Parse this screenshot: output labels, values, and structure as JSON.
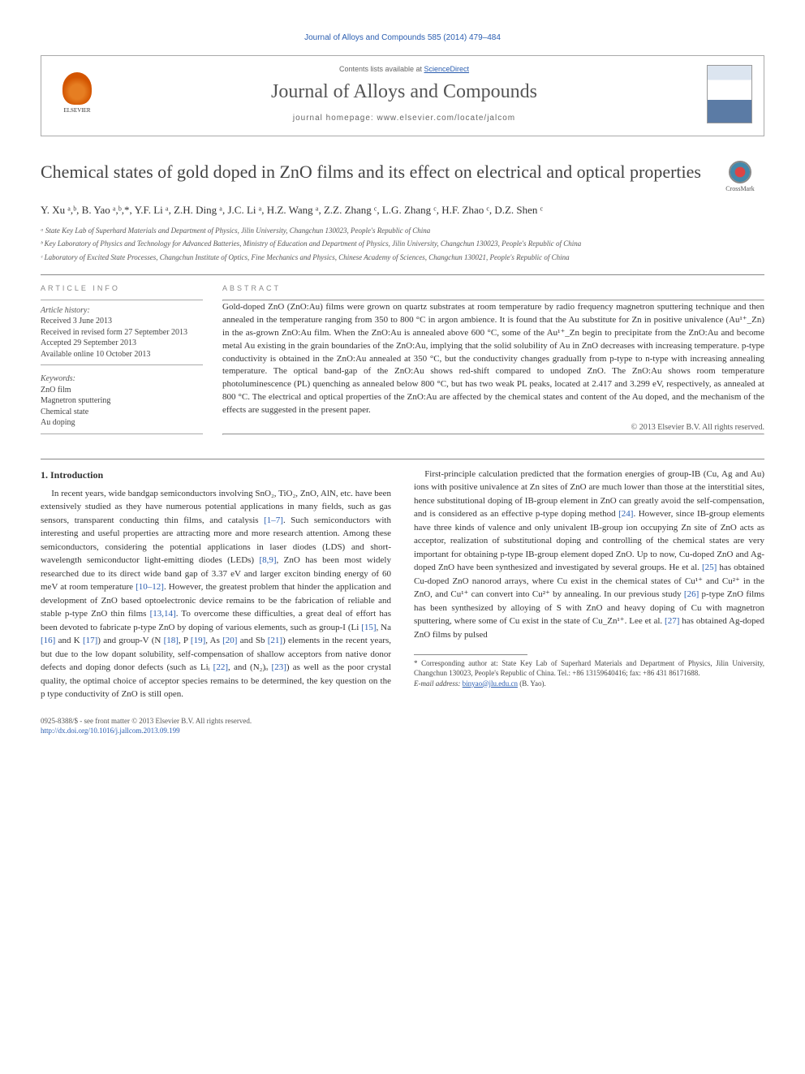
{
  "journal_ref": "Journal of Alloys and Compounds 585 (2014) 479–484",
  "header": {
    "contents_pre": "Contents lists available at ",
    "contents_link": "ScienceDirect",
    "journal_title": "Journal of Alloys and Compounds",
    "homepage": "journal homepage: www.elsevier.com/locate/jalcom",
    "publisher": "ELSEVIER"
  },
  "crossmark_label": "CrossMark",
  "title": "Chemical states of gold doped in ZnO films and its effect on electrical and optical properties",
  "authors": "Y. Xu ᵃ,ᵇ, B. Yao ᵃ,ᵇ,*, Y.F. Li ᵃ, Z.H. Ding ᵃ, J.C. Li ᵃ, H.Z. Wang ᵃ, Z.Z. Zhang ᶜ, L.G. Zhang ᶜ, H.F. Zhao ᶜ, D.Z. Shen ᶜ",
  "aff_a": "ᵃ State Key Lab of Superhard Materials and Department of Physics, Jilin University, Changchun 130023, People's Republic of China",
  "aff_b": "ᵇ Key Laboratory of Physics and Technology for Advanced Batteries, Ministry of Education and Department of Physics, Jilin University, Changchun 130023, People's Republic of China",
  "aff_c": "ᶜ Laboratory of Excited State Processes, Changchun Institute of Optics, Fine Mechanics and Physics, Chinese Academy of Sciences, Changchun 130021, People's Republic of China",
  "info_head": "ARTICLE INFO",
  "abstract_head": "ABSTRACT",
  "history_label": "Article history:",
  "history": {
    "received": "Received 3 June 2013",
    "revised": "Received in revised form 27 September 2013",
    "accepted": "Accepted 29 September 2013",
    "online": "Available online 10 October 2013"
  },
  "kw_label": "Keywords:",
  "keywords": {
    "k1": "ZnO film",
    "k2": "Magnetron sputtering",
    "k3": "Chemical state",
    "k4": "Au doping"
  },
  "abstract": "Gold-doped ZnO (ZnO:Au) films were grown on quartz substrates at room temperature by radio frequency magnetron sputtering technique and then annealed in the temperature ranging from 350 to 800 °C in argon ambience. It is found that the Au substitute for Zn in positive univalence (Au¹⁺_Zn) in the as-grown ZnO:Au film. When the ZnO:Au is annealed above 600 °C, some of the Au¹⁺_Zn begin to precipitate from the ZnO:Au and become metal Au existing in the grain boundaries of the ZnO:Au, implying that the solid solubility of Au in ZnO decreases with increasing temperature. p-type conductivity is obtained in the ZnO:Au annealed at 350 °C, but the conductivity changes gradually from p-type to n-type with increasing annealing temperature. The optical band-gap of the ZnO:Au shows red-shift compared to undoped ZnO. The ZnO:Au shows room temperature photoluminescence (PL) quenching as annealed below 800 °C, but has two weak PL peaks, located at 2.417 and 3.299 eV, respectively, as annealed at 800 °C. The electrical and optical properties of the ZnO:Au are affected by the chemical states and content of the Au doped, and the mechanism of the effects are suggested in the present paper.",
  "copyright": "© 2013 Elsevier B.V. All rights reserved.",
  "section_heading": "1. Introduction",
  "para1_a": "In recent years, wide bandgap semiconductors involving SnO₂, TiO₂, ZnO, AlN, etc. have been extensively studied as they have numerous potential applications in many fields, such as gas sensors, transparent conducting thin films, and catalysis ",
  "ref_1_7": "[1–7]",
  "para1_b": ". Such semiconductors with interesting and useful properties are attracting more and more research attention. Among these semiconductors, considering the potential applications in laser diodes (LDS) and short-wavelength semiconductor light-emitting diodes (LEDs) ",
  "ref_8_9": "[8,9]",
  "para1_c": ", ZnO has been most widely researched due to its direct wide band gap of 3.37 eV and larger exciton binding energy of 60 meV at room temperature ",
  "ref_10_12": "[10–12]",
  "para1_d": ". However, the greatest problem that hinder the application and development of ZnO based optoelectronic device remains to be the fabrication of reliable and stable p-type ZnO thin films ",
  "ref_13_14": "[13,14]",
  "para1_e": ". To overcome these difficulties, a great deal of effort has been devoted to fabricate p-type ZnO by doping of various elements, such as group-I (Li ",
  "ref_15": "[15]",
  "para1_f": ", Na ",
  "ref_16": "[16]",
  "para1_g": " and K ",
  "ref_17": "[17]",
  "para1_h": ") and group-V (N ",
  "ref_18": "[18]",
  "para1_i": ", P ",
  "ref_19": "[19]",
  "para1_j": ", As ",
  "ref_20": "[20]",
  "para1_k": " and Sb ",
  "ref_21": "[21]",
  "para1_l": ") elements in the recent years, but due to the low dopant solubility, self-compensation of shallow acceptors from native donor defects and doping donor defects (such as Liᵢ ",
  "ref_22": "[22]",
  "para1_m": ", and (N₂)ₒ ",
  "ref_23": "[23]",
  "para1_n": ") as well as the poor crystal quality, the optimal choice of acceptor species remains to be determined, the key question on the p type conductivity of ZnO is still open.",
  "para2_a": "First-principle calculation predicted that the formation energies of group-IB (Cu, Ag and Au) ions with positive univalence at Zn sites of ZnO are much lower than those at the interstitial sites, hence substitutional doping of IB-group element in ZnO can greatly avoid the self-compensation, and is considered as an effective p-type doping method ",
  "ref_24": "[24]",
  "para2_b": ". However, since IB-group elements have three kinds of valence and only univalent IB-group ion occupying Zn site of ZnO acts as acceptor, realization of substitutional doping and controlling of the chemical states are very important for obtaining p-type IB-group element doped ZnO. Up to now, Cu-doped ZnO and Ag-doped ZnO have been synthesized and investigated by several groups. He et al. ",
  "ref_25": "[25]",
  "para2_c": " has obtained Cu-doped ZnO nanorod arrays, where Cu exist in the chemical states of Cu¹⁺ and Cu²⁺ in the ZnO, and Cu¹⁺ can convert into Cu²⁺ by annealing. In our previous study ",
  "ref_26": "[26]",
  "para2_d": " p-type ZnO films has been synthesized by alloying of S with ZnO and heavy doping of Cu with magnetron sputtering, where some of Cu exist in the state of Cu_Zn¹⁺. Lee et al. ",
  "ref_27": "[27]",
  "para2_e": " has obtained Ag-doped ZnO films by pulsed",
  "footnote_corr": "* Corresponding author at: State Key Lab of Superhard Materials and Department of Physics, Jilin University, Changchun 130023, People's Republic of China. Tel.: +86 13159640416; fax: +86 431 86171688.",
  "footnote_email_label": "E-mail address: ",
  "footnote_email": "binyao@jlu.edu.cn",
  "footnote_email_post": " (B. Yao).",
  "footer_left1": "0925-8388/$ - see front matter © 2013 Elsevier B.V. All rights reserved.",
  "footer_left2": "http://dx.doi.org/10.1016/j.jallcom.2013.09.199"
}
